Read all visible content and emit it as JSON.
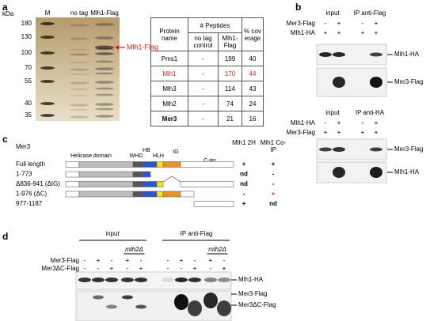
{
  "panel_a": {
    "label": "a",
    "kda": "kDa",
    "lanes": [
      "M",
      "no tag",
      "Mlh1-Flag"
    ],
    "markers": [
      180,
      130,
      100,
      70,
      55,
      40,
      35
    ],
    "arrow_label": "Mlh1-Flag",
    "table": {
      "headers": [
        "Protein name",
        "# Peptides",
        "% coverage"
      ],
      "subheaders": [
        "no tag control",
        "Mlh1-Flag"
      ],
      "rows": [
        [
          "Pms1",
          "-",
          199,
          40
        ],
        [
          "Mlh1",
          "-",
          170,
          44
        ],
        [
          "Mlh3",
          "-",
          114,
          43
        ],
        [
          "Mlh2",
          "-",
          74,
          24
        ],
        [
          "Mer3",
          "-",
          21,
          16
        ]
      ],
      "highlight_row": 1,
      "highlight_color": "#e02020",
      "bold_row": 4
    }
  },
  "panel_b": {
    "label": "b",
    "top": {
      "groups": [
        "input",
        "IP anti-Flag"
      ],
      "rows": [
        {
          "name": "Mer3-Flag",
          "signs": [
            "-",
            "+",
            "-",
            "+"
          ]
        },
        {
          "name": "Mlh1-HA",
          "signs": [
            "+",
            "+",
            "+",
            "+"
          ]
        }
      ],
      "bands": [
        "Mlh1-HA",
        "Mer3-Flag"
      ]
    },
    "bottom": {
      "groups": [
        "input",
        "IP anti-HA"
      ],
      "rows": [
        {
          "name": "Mlh1-HA",
          "signs": [
            "-",
            "+",
            "-",
            "+"
          ]
        },
        {
          "name": "Mer3-Flag",
          "signs": [
            "+",
            "+",
            "+",
            "+"
          ]
        }
      ],
      "bands": [
        "Mer3-Flag",
        "Mlh1-HA"
      ]
    }
  },
  "panel_c": {
    "label": "c",
    "protein": "Mer3",
    "domains": [
      "Helicase domain",
      "WHD",
      "HB",
      "HLH",
      "IG",
      "C-ter"
    ],
    "columns": [
      "Mlh1 2H",
      "Mlh1 Co-IP"
    ],
    "constructs": [
      {
        "name": "Full length",
        "two_hybrid": "+",
        "co_ip": "+"
      },
      {
        "name": "1-773",
        "two_hybrid": "nd",
        "co_ip": "-"
      },
      {
        "name": "Δ836-941 (ΔIG)",
        "two_hybrid": "nd",
        "co_ip": "-"
      },
      {
        "name": "1-976 (ΔC)",
        "two_hybrid": "-",
        "co_ip": "+",
        "co_ip_color": "#e02020"
      },
      {
        "name": "977-1187",
        "two_hybrid": "+",
        "co_ip": "nd"
      }
    ]
  },
  "panel_d": {
    "label": "d",
    "groups": [
      "input",
      "IP anti-Flag"
    ],
    "mutant": "mlh2Δ",
    "rows": [
      {
        "name": "Mer3-Flag",
        "signs": [
          "-",
          "+",
          "-",
          "+",
          "-",
          "-",
          "+",
          "-",
          "+",
          "-"
        ]
      },
      {
        "name": "Mer3ΔC-Flag",
        "signs": [
          "-",
          "-",
          "+",
          "-",
          "+",
          "-",
          "-",
          "+",
          "-",
          "+"
        ]
      }
    ],
    "bands": [
      "Mlh1-HA",
      "Mer3-Flag",
      "Mer3ΔC-Flag"
    ]
  }
}
